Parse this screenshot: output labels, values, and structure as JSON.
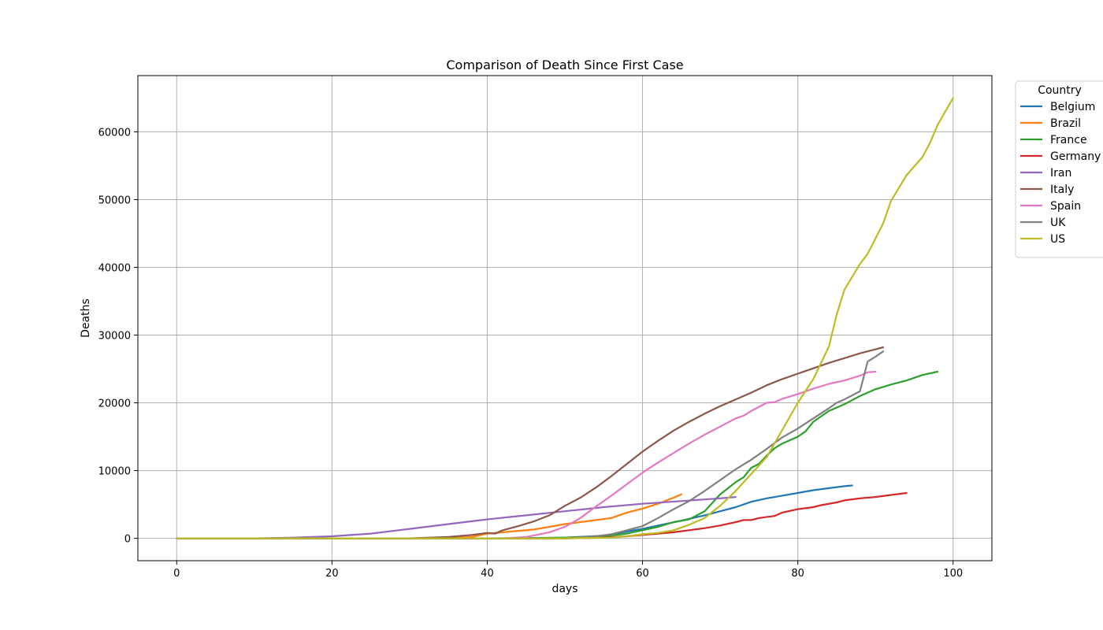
{
  "chart_data": {
    "type": "line",
    "title": "Comparison of Death Since First Case",
    "xlabel": "days",
    "ylabel": "Deaths",
    "xlim": [
      -5,
      105
    ],
    "ylim": [
      -3300,
      68300
    ],
    "xticks": [
      0,
      20,
      40,
      60,
      80,
      100
    ],
    "yticks": [
      0,
      10000,
      20000,
      30000,
      40000,
      50000,
      60000
    ],
    "grid": true,
    "legend": {
      "title": "Country",
      "placement": "outside-top-right"
    },
    "series": [
      {
        "name": "Belgium",
        "color": "#1f77b4",
        "points": [
          [
            0,
            0
          ],
          [
            40,
            0
          ],
          [
            50,
            100
          ],
          [
            55,
            400
          ],
          [
            58,
            1000
          ],
          [
            60,
            1400
          ],
          [
            62,
            1900
          ],
          [
            65,
            2600
          ],
          [
            68,
            3400
          ],
          [
            70,
            4000
          ],
          [
            72,
            4600
          ],
          [
            74,
            5400
          ],
          [
            76,
            5900
          ],
          [
            78,
            6300
          ],
          [
            80,
            6700
          ],
          [
            82,
            7100
          ],
          [
            84,
            7400
          ],
          [
            86,
            7700
          ],
          [
            87,
            7800
          ]
        ]
      },
      {
        "name": "Brazil",
        "color": "#ff7f0e",
        "points": [
          [
            0,
            0
          ],
          [
            35,
            0
          ],
          [
            38,
            200
          ],
          [
            40,
            700
          ],
          [
            42,
            900
          ],
          [
            44,
            1100
          ],
          [
            46,
            1300
          ],
          [
            48,
            1700
          ],
          [
            50,
            2100
          ],
          [
            52,
            2400
          ],
          [
            54,
            2700
          ],
          [
            56,
            3000
          ],
          [
            58,
            3800
          ],
          [
            60,
            4400
          ],
          [
            62,
            5100
          ],
          [
            64,
            6000
          ],
          [
            65,
            6500
          ]
        ]
      },
      {
        "name": "France",
        "color": "#2ca02c",
        "points": [
          [
            0,
            0
          ],
          [
            45,
            0
          ],
          [
            50,
            100
          ],
          [
            55,
            300
          ],
          [
            58,
            700
          ],
          [
            60,
            1200
          ],
          [
            62,
            1700
          ],
          [
            64,
            2400
          ],
          [
            66,
            2800
          ],
          [
            68,
            4000
          ],
          [
            70,
            6500
          ],
          [
            72,
            8300
          ],
          [
            73,
            9000
          ],
          [
            74,
            10400
          ],
          [
            75,
            11000
          ],
          [
            76,
            12200
          ],
          [
            77,
            13300
          ],
          [
            78,
            14000
          ],
          [
            80,
            15000
          ],
          [
            81,
            15800
          ],
          [
            82,
            17200
          ],
          [
            84,
            18800
          ],
          [
            86,
            19800
          ],
          [
            88,
            21000
          ],
          [
            90,
            22000
          ],
          [
            92,
            22700
          ],
          [
            94,
            23300
          ],
          [
            96,
            24100
          ],
          [
            98,
            24600
          ]
        ]
      },
      {
        "name": "Germany",
        "color": "#d62728",
        "points": [
          [
            0,
            0
          ],
          [
            50,
            0
          ],
          [
            55,
            100
          ],
          [
            58,
            300
          ],
          [
            60,
            500
          ],
          [
            62,
            700
          ],
          [
            64,
            900
          ],
          [
            66,
            1200
          ],
          [
            68,
            1500
          ],
          [
            70,
            1900
          ],
          [
            72,
            2400
          ],
          [
            73,
            2700
          ],
          [
            74,
            2700
          ],
          [
            75,
            3000
          ],
          [
            77,
            3300
          ],
          [
            78,
            3800
          ],
          [
            80,
            4300
          ],
          [
            82,
            4600
          ],
          [
            83,
            4900
          ],
          [
            85,
            5300
          ],
          [
            86,
            5600
          ],
          [
            88,
            5900
          ],
          [
            90,
            6100
          ],
          [
            92,
            6400
          ],
          [
            94,
            6700
          ]
        ]
      },
      {
        "name": "Iran",
        "color": "#9467bd",
        "points": [
          [
            0,
            0
          ],
          [
            10,
            0
          ],
          [
            15,
            100
          ],
          [
            20,
            300
          ],
          [
            25,
            700
          ],
          [
            30,
            1400
          ],
          [
            35,
            2100
          ],
          [
            40,
            2800
          ],
          [
            45,
            3400
          ],
          [
            50,
            4000
          ],
          [
            55,
            4600
          ],
          [
            60,
            5100
          ],
          [
            65,
            5500
          ],
          [
            70,
            5900
          ],
          [
            72,
            6100
          ]
        ]
      },
      {
        "name": "Italy",
        "color": "#8c564b",
        "points": [
          [
            0,
            0
          ],
          [
            30,
            0
          ],
          [
            35,
            200
          ],
          [
            38,
            500
          ],
          [
            40,
            800
          ],
          [
            41,
            700
          ],
          [
            42,
            1200
          ],
          [
            44,
            1800
          ],
          [
            46,
            2500
          ],
          [
            48,
            3400
          ],
          [
            50,
            4800
          ],
          [
            52,
            6000
          ],
          [
            54,
            7500
          ],
          [
            56,
            9200
          ],
          [
            58,
            11000
          ],
          [
            60,
            12800
          ],
          [
            62,
            14400
          ],
          [
            64,
            15900
          ],
          [
            66,
            17200
          ],
          [
            68,
            18400
          ],
          [
            70,
            19500
          ],
          [
            72,
            20500
          ],
          [
            74,
            21500
          ],
          [
            76,
            22600
          ],
          [
            78,
            23500
          ],
          [
            80,
            24300
          ],
          [
            82,
            25100
          ],
          [
            84,
            25900
          ],
          [
            86,
            26600
          ],
          [
            88,
            27300
          ],
          [
            90,
            27900
          ],
          [
            91,
            28200
          ]
        ]
      },
      {
        "name": "Spain",
        "color": "#e377c2",
        "points": [
          [
            0,
            0
          ],
          [
            42,
            0
          ],
          [
            45,
            200
          ],
          [
            48,
            900
          ],
          [
            50,
            1700
          ],
          [
            52,
            3000
          ],
          [
            54,
            4700
          ],
          [
            56,
            6300
          ],
          [
            58,
            8000
          ],
          [
            60,
            9700
          ],
          [
            62,
            11200
          ],
          [
            64,
            12600
          ],
          [
            66,
            14000
          ],
          [
            68,
            15300
          ],
          [
            70,
            16500
          ],
          [
            72,
            17700
          ],
          [
            73,
            18100
          ],
          [
            74,
            18800
          ],
          [
            76,
            20000
          ],
          [
            77,
            20100
          ],
          [
            78,
            20600
          ],
          [
            80,
            21300
          ],
          [
            82,
            22100
          ],
          [
            84,
            22800
          ],
          [
            86,
            23300
          ],
          [
            88,
            24000
          ],
          [
            89,
            24500
          ],
          [
            90,
            24600
          ]
        ]
      },
      {
        "name": "UK",
        "color": "#7f7f7f",
        "points": [
          [
            0,
            0
          ],
          [
            50,
            0
          ],
          [
            54,
            300
          ],
          [
            56,
            600
          ],
          [
            58,
            1200
          ],
          [
            60,
            1800
          ],
          [
            62,
            3000
          ],
          [
            64,
            4300
          ],
          [
            66,
            5500
          ],
          [
            68,
            7000
          ],
          [
            70,
            8600
          ],
          [
            72,
            10200
          ],
          [
            74,
            11600
          ],
          [
            76,
            13200
          ],
          [
            78,
            14900
          ],
          [
            80,
            16200
          ],
          [
            82,
            17700
          ],
          [
            84,
            19200
          ],
          [
            85,
            20000
          ],
          [
            86,
            20500
          ],
          [
            88,
            21700
          ],
          [
            89,
            26100
          ],
          [
            90,
            26800
          ],
          [
            91,
            27600
          ]
        ]
      },
      {
        "name": "US",
        "color": "#bcbd22",
        "points": [
          [
            0,
            0
          ],
          [
            50,
            0
          ],
          [
            56,
            100
          ],
          [
            58,
            300
          ],
          [
            60,
            600
          ],
          [
            62,
            800
          ],
          [
            64,
            1200
          ],
          [
            66,
            2000
          ],
          [
            68,
            3000
          ],
          [
            70,
            4800
          ],
          [
            72,
            7000
          ],
          [
            74,
            9500
          ],
          [
            76,
            12000
          ],
          [
            78,
            16000
          ],
          [
            80,
            20000
          ],
          [
            82,
            23500
          ],
          [
            84,
            28300
          ],
          [
            85,
            33000
          ],
          [
            86,
            36700
          ],
          [
            88,
            40500
          ],
          [
            89,
            42000
          ],
          [
            91,
            46500
          ],
          [
            92,
            49800
          ],
          [
            94,
            53600
          ],
          [
            96,
            56200
          ],
          [
            97,
            58300
          ],
          [
            98,
            61000
          ],
          [
            100,
            65000
          ]
        ]
      }
    ]
  }
}
